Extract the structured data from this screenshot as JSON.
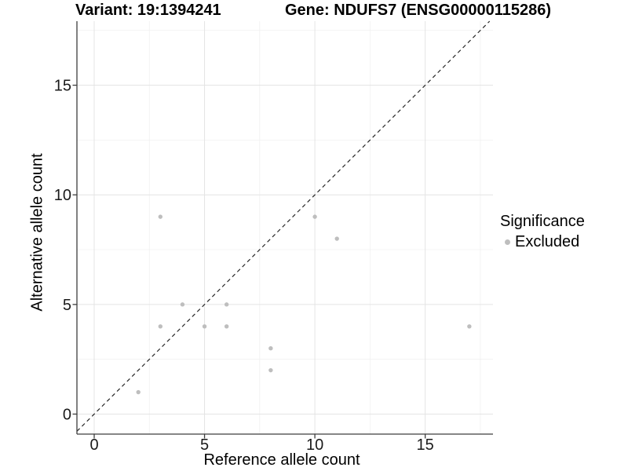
{
  "header": {
    "variant_title": "Variant: 19:1394241",
    "gene_title": "Gene: NDUFS7 (ENSG00000115286)"
  },
  "legend": {
    "title": "Significance",
    "entries": [
      {
        "label": "Excluded",
        "color": "#bebebe"
      }
    ]
  },
  "chart_data": {
    "type": "scatter",
    "title": "Variant: 19:1394241 — Gene: NDUFS7 (ENSG00000115286)",
    "xlabel": "Reference allele count",
    "ylabel": "Alternative allele count",
    "xlim": [
      -0.9,
      18.1
    ],
    "ylim": [
      -0.95,
      17.95
    ],
    "x_ticks": [
      0,
      5,
      10,
      15
    ],
    "y_ticks": [
      0,
      5,
      10,
      15
    ],
    "x_minor_ticks": [
      2.5,
      7.5,
      12.5,
      17.5
    ],
    "y_minor_ticks": [
      2.5,
      7.5,
      12.5,
      17.5
    ],
    "grid": "major+minor",
    "legend_position": "right-center",
    "identity_line": {
      "style": "dashed",
      "slope": 1,
      "intercept": 0
    },
    "series": [
      {
        "name": "Excluded",
        "color": "#bebebe",
        "points": [
          [
            2,
            1
          ],
          [
            3,
            4
          ],
          [
            3,
            9
          ],
          [
            4,
            5
          ],
          [
            5,
            4
          ],
          [
            6,
            4
          ],
          [
            6,
            5
          ],
          [
            8,
            2
          ],
          [
            8,
            3
          ],
          [
            10,
            9
          ],
          [
            11,
            8
          ],
          [
            17,
            4
          ]
        ]
      }
    ]
  },
  "colors": {
    "background": "#ffffff",
    "grid_major": "#e4e4e4",
    "grid_minor": "#f0f0f0",
    "axis_line": "#3d3d3d",
    "tick_text": "#1a1a1a",
    "identity_line": "#262626",
    "point": "#bebebe"
  }
}
